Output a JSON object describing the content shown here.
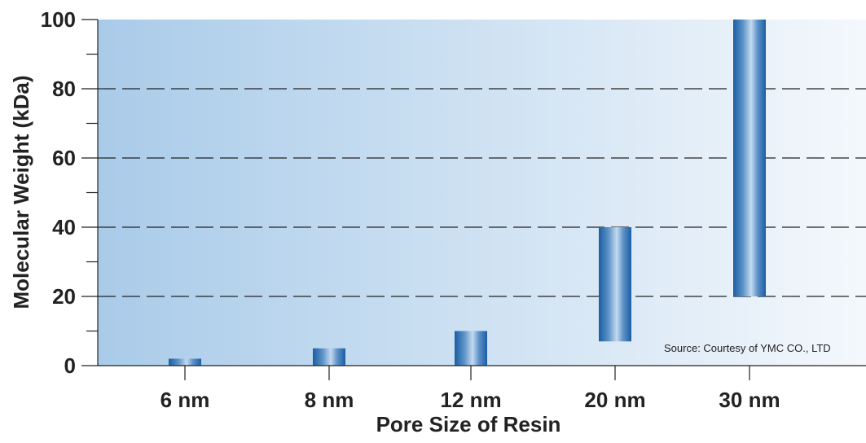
{
  "chart_data": {
    "type": "bar",
    "xlabel": "Pore Size of Resin",
    "ylabel": "Molecular Weight (kDa)",
    "ylim": [
      0,
      100
    ],
    "yticks": [
      0,
      20,
      40,
      60,
      80,
      100
    ],
    "categories": [
      "6 nm",
      "8 nm",
      "12 nm",
      "20 nm",
      "30 nm"
    ],
    "ranges": [
      {
        "category": "6 nm",
        "low": 0,
        "high": 2
      },
      {
        "category": "8 nm",
        "low": 0,
        "high": 5
      },
      {
        "category": "12 nm",
        "low": 0,
        "high": 10
      },
      {
        "category": "20 nm",
        "low": 7,
        "high": 40
      },
      {
        "category": "30 nm",
        "low": 20,
        "high": 100
      }
    ],
    "grid": "dashed horizontal at 20, 40, 60, 80",
    "annotation": "Source: Courtesy of YMC CO., LTD",
    "colors": {
      "background_left": "#a9cbe9",
      "background_right": "#f4f8fc",
      "bar_dark": "#1a5ea3",
      "bar_light": "#c4daf0",
      "grid": "#222222"
    }
  }
}
